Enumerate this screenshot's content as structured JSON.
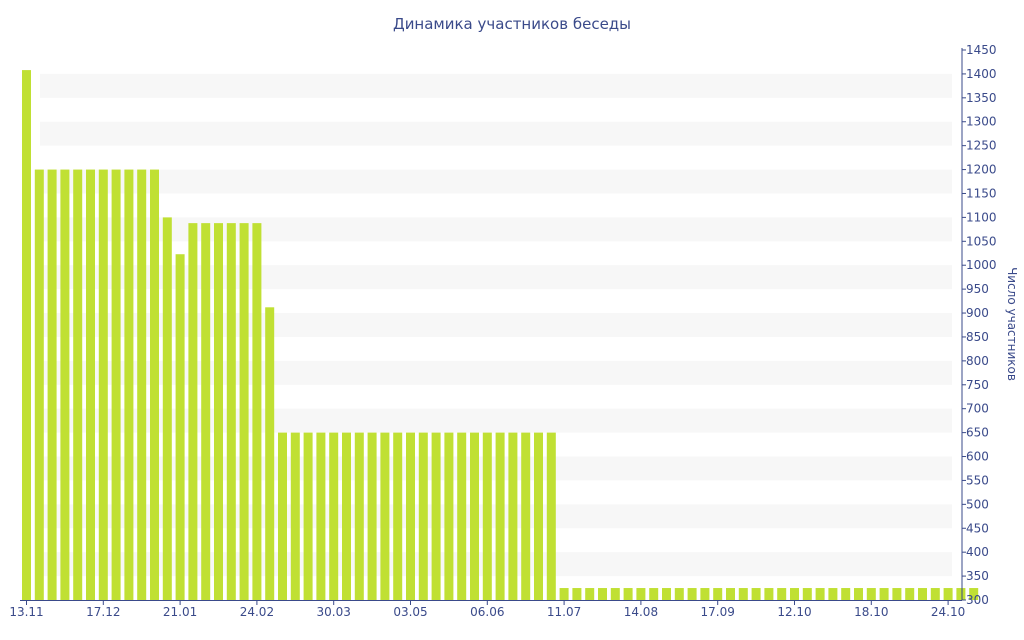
{
  "chart_data": {
    "type": "bar",
    "title": "Динамика участников беседы",
    "xlabel": "",
    "ylabel": "Число участников",
    "ylim": [
      300,
      1450
    ],
    "ytick_step": 50,
    "grid": "alternating horizontal bands",
    "bar_color": "#c0e033",
    "band_color": "#f7f7f7",
    "text_color": "#3a4a8a",
    "x_tick_labels": [
      {
        "index": 0,
        "label": "13.11"
      },
      {
        "index": 6,
        "label": "17.12"
      },
      {
        "index": 12,
        "label": "21.01"
      },
      {
        "index": 18,
        "label": "24.02"
      },
      {
        "index": 24,
        "label": "30.03"
      },
      {
        "index": 30,
        "label": "03.05"
      },
      {
        "index": 36,
        "label": "06.06"
      },
      {
        "index": 42,
        "label": "11.07"
      },
      {
        "index": 48,
        "label": "14.08"
      },
      {
        "index": 54,
        "label": "17.09"
      },
      {
        "index": 60,
        "label": "12.10"
      },
      {
        "index": 66,
        "label": "18.10"
      },
      {
        "index": 72,
        "label": "24.10"
      }
    ],
    "values": [
      1408,
      1200,
      1200,
      1200,
      1200,
      1200,
      1200,
      1200,
      1200,
      1200,
      1200,
      1100,
      1023,
      1088,
      1088,
      1088,
      1088,
      1088,
      1088,
      912,
      650,
      650,
      650,
      650,
      650,
      650,
      650,
      650,
      650,
      650,
      650,
      650,
      650,
      650,
      650,
      650,
      650,
      650,
      650,
      650,
      650,
      650,
      325,
      325,
      325,
      325,
      325,
      325,
      325,
      325,
      325,
      325,
      325,
      325,
      325,
      325,
      325,
      325,
      325,
      325,
      325,
      325,
      325,
      325,
      325,
      325,
      325,
      325,
      325,
      325,
      325,
      325,
      325,
      325,
      325
    ]
  }
}
